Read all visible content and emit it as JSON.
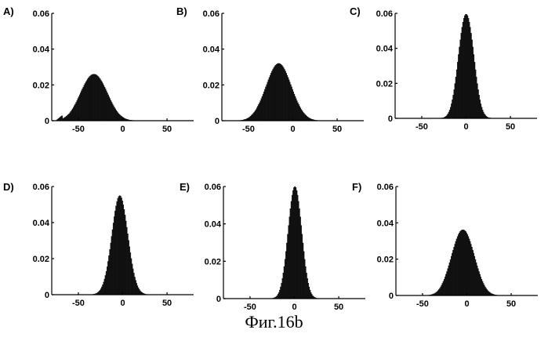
{
  "caption": "Фиг.16b",
  "colors": {
    "bars": "#111111",
    "axes": "#000000",
    "background": "#ffffff"
  },
  "chart_data": [
    {
      "panel": "A)",
      "type": "bar",
      "xlim": [
        -80,
        80
      ],
      "ylim": [
        0,
        0.06
      ],
      "xticks": [
        -50,
        0,
        50
      ],
      "xtick_labels": [
        "-50",
        "0",
        "50"
      ],
      "yticks": [
        0,
        0.02,
        0.04,
        0.06
      ],
      "ytick_labels": [
        "0",
        "0.02",
        "0.04",
        "0.06"
      ],
      "bins": {
        "start": -80,
        "width": 1
      },
      "values": [
        0.0,
        0.0,
        0.0,
        0.0,
        0.0,
        0.0004,
        0.0008,
        0.0012,
        0.0016,
        0.002,
        0.0024,
        0.0028,
        0.0012,
        0.0015,
        0.0018,
        0.0021,
        0.0025,
        0.0029,
        0.0034,
        0.0039,
        0.0045,
        0.0052,
        0.0059,
        0.0067,
        0.0075,
        0.0084,
        0.0093,
        0.0103,
        0.0113,
        0.0124,
        0.0134,
        0.0145,
        0.0156,
        0.0167,
        0.0178,
        0.0188,
        0.0198,
        0.0208,
        0.0217,
        0.0225,
        0.0233,
        0.024,
        0.0246,
        0.0251,
        0.0255,
        0.0258,
        0.026,
        0.026,
        0.026,
        0.0258,
        0.0255,
        0.0251,
        0.0246,
        0.024,
        0.0233,
        0.0225,
        0.0217,
        0.0208,
        0.0198,
        0.0188,
        0.0178,
        0.0167,
        0.0156,
        0.0145,
        0.0134,
        0.0124,
        0.0113,
        0.0103,
        0.0093,
        0.0084,
        0.0075,
        0.0067,
        0.0059,
        0.0052,
        0.0045,
        0.0039,
        0.0034,
        0.0029,
        0.0025,
        0.0021,
        0.0018,
        0.0015,
        0.0012,
        0.001,
        0.0008,
        0.0007,
        0.0005,
        0.0004,
        0.0003,
        0.0003,
        0.0002,
        0.0002,
        0.0001,
        0.0001,
        0.0001,
        0.0001,
        0.0,
        0.0,
        0.0,
        0.0,
        0.0,
        0.0,
        0.0,
        0.0,
        0.0,
        0.0,
        0.0,
        0.0,
        0.0,
        0.0,
        0.0,
        0.0,
        0.0,
        0.0,
        0.0,
        0.0,
        0.0,
        0.0,
        0.0,
        0.0,
        0.0,
        0.0,
        0.0,
        0.0,
        0.0,
        0.0,
        0.0,
        0.0,
        0.0,
        0.0,
        0.0,
        0.0,
        0.0,
        0.0,
        0.0,
        0.0,
        0.0,
        0.0,
        0.0,
        0.0,
        0.0,
        0.0,
        0.0,
        0.0,
        0.0,
        0.0,
        0.0,
        0.0,
        0.0,
        0.0,
        0.0,
        0.0,
        0.0,
        0.0,
        0.0,
        0.0,
        0.0,
        0.0,
        0.0,
        0.0,
        0.0,
        0.0,
        0.0,
        0.0,
        0.0,
        0.0,
        0.0,
        0.0
      ]
    },
    {
      "panel": "B)",
      "type": "bar",
      "xlim": [
        -80,
        80
      ],
      "ylim": [
        0,
        0.06
      ],
      "xticks": [
        -50,
        0,
        50
      ],
      "xtick_labels": [
        "-50",
        "0",
        "50"
      ],
      "yticks": [
        0,
        0.02,
        0.04,
        0.06
      ],
      "ytick_labels": [
        "0",
        "0.02",
        "0.04",
        "0.06"
      ],
      "bins": {
        "start": -80,
        "width": 1
      },
      "values": [
        0.0,
        0.0,
        0.0,
        0.0,
        0.0,
        0.0,
        0.0,
        0.0,
        0.0,
        0.0,
        0.0,
        0.0,
        0.0,
        0.0,
        0.0,
        0.0,
        0.0,
        0.0001,
        0.0001,
        0.0001,
        0.0002,
        0.0002,
        0.0003,
        0.0004,
        0.0005,
        0.0007,
        0.0008,
        0.001,
        0.0013,
        0.0015,
        0.0018,
        0.0022,
        0.0026,
        0.0031,
        0.0036,
        0.0042,
        0.0048,
        0.0055,
        0.0063,
        0.0072,
        0.0081,
        0.0091,
        0.0101,
        0.0112,
        0.0124,
        0.0136,
        0.0149,
        0.0162,
        0.0175,
        0.0189,
        0.0202,
        0.0216,
        0.0229,
        0.0242,
        0.0254,
        0.0266,
        0.0277,
        0.0287,
        0.0296,
        0.0304,
        0.031,
        0.0315,
        0.0318,
        0.032,
        0.032,
        0.0318,
        0.0315,
        0.031,
        0.0304,
        0.0296,
        0.0287,
        0.0277,
        0.0266,
        0.0254,
        0.0242,
        0.0229,
        0.0216,
        0.0202,
        0.0189,
        0.0175,
        0.0162,
        0.0149,
        0.0136,
        0.0124,
        0.0112,
        0.0101,
        0.0091,
        0.0081,
        0.0072,
        0.0063,
        0.0055,
        0.0048,
        0.0042,
        0.0036,
        0.0031,
        0.0026,
        0.0022,
        0.0018,
        0.0015,
        0.0013,
        0.001,
        0.0008,
        0.0007,
        0.0005,
        0.0004,
        0.0003,
        0.0002,
        0.0002,
        0.0001,
        0.0001,
        0.0001,
        0.0,
        0.0,
        0.0,
        0.0,
        0.0,
        0.0,
        0.0,
        0.0,
        0.0,
        0.0,
        0.0,
        0.0,
        0.0,
        0.0,
        0.0,
        0.0,
        0.0,
        0.0,
        0.0,
        0.0,
        0.0,
        0.0,
        0.0,
        0.0,
        0.0,
        0.0,
        0.0,
        0.0,
        0.0,
        0.0,
        0.0,
        0.0,
        0.0,
        0.0,
        0.0,
        0.0,
        0.0,
        0.0,
        0.0,
        0.0,
        0.0,
        0.0,
        0.0,
        0.0,
        0.0,
        0.0,
        0.0,
        0.0,
        0.0,
        0.0,
        0.0,
        0.0,
        0.0,
        0.0,
        0.0,
        0.0
      ]
    },
    {
      "panel": "C)",
      "type": "bar",
      "xlim": [
        -80,
        80
      ],
      "ylim": [
        0,
        0.06
      ],
      "xticks": [
        -50,
        0,
        50
      ],
      "xtick_labels": [
        "-50",
        "0",
        "50"
      ],
      "yticks": [
        0,
        0.02,
        0.04,
        0.06
      ],
      "ytick_labels": [
        "0",
        "0.02",
        "0.04",
        "0.06"
      ],
      "bins": {
        "start": -80,
        "width": 1
      },
      "values": [
        0.0,
        0.0,
        0.0,
        0.0,
        0.0,
        0.0,
        0.0,
        0.0,
        0.0,
        0.0,
        0.0,
        0.0,
        0.0,
        0.0,
        0.0,
        0.0,
        0.0,
        0.0,
        0.0,
        0.0,
        0.0,
        0.0,
        0.0,
        0.0,
        0.0,
        0.0,
        0.0,
        0.0,
        0.0,
        0.0,
        0.0,
        0.0,
        0.0,
        0.0,
        0.0,
        0.0,
        0.0,
        0.0,
        0.0,
        0.0,
        0.0,
        0.0,
        0.0,
        0.0,
        0.0,
        0.0,
        0.0,
        0.0,
        0.0,
        0.0,
        0.0001,
        0.0001,
        0.0002,
        0.0003,
        0.0004,
        0.0006,
        0.0009,
        0.0013,
        0.0019,
        0.0026,
        0.0036,
        0.0048,
        0.0064,
        0.0083,
        0.0106,
        0.0133,
        0.0164,
        0.0199,
        0.0237,
        0.0278,
        0.0321,
        0.0365,
        0.0408,
        0.0449,
        0.0487,
        0.0521,
        0.055,
        0.0572,
        0.0587,
        0.0594,
        0.0594,
        0.0587,
        0.0572,
        0.055,
        0.0521,
        0.0487,
        0.0449,
        0.0408,
        0.0365,
        0.0321,
        0.0278,
        0.0237,
        0.0199,
        0.0164,
        0.0133,
        0.0106,
        0.0083,
        0.0064,
        0.0048,
        0.0036,
        0.0026,
        0.0019,
        0.0013,
        0.0009,
        0.0006,
        0.0004,
        0.0003,
        0.0002,
        0.0001,
        0.0001,
        0.0,
        0.0,
        0.0,
        0.0,
        0.0,
        0.0,
        0.0,
        0.0,
        0.0,
        0.0,
        0.0,
        0.0,
        0.0,
        0.0,
        0.0,
        0.0,
        0.0,
        0.0,
        0.0,
        0.0,
        0.0,
        0.0,
        0.0,
        0.0,
        0.0,
        0.0,
        0.0,
        0.0,
        0.0,
        0.0,
        0.0,
        0.0,
        0.0,
        0.0,
        0.0,
        0.0,
        0.0,
        0.0,
        0.0,
        0.0,
        0.0,
        0.0,
        0.0,
        0.0,
        0.0,
        0.0,
        0.0,
        0.0,
        0.0,
        0.0,
        0.0,
        0.0,
        0.0,
        0.0,
        0.0,
        0.0
      ]
    },
    {
      "panel": "D)",
      "type": "bar",
      "xlim": [
        -80,
        80
      ],
      "ylim": [
        0,
        0.06
      ],
      "xticks": [
        -50,
        0,
        50
      ],
      "xtick_labels": [
        "-50",
        "0",
        "50"
      ],
      "yticks": [
        0,
        0.02,
        0.04,
        0.06
      ],
      "ytick_labels": [
        "0",
        "0.02",
        "0.04",
        "0.06"
      ],
      "bins": {
        "start": -80,
        "width": 1
      },
      "values": [
        0.0,
        0.0,
        0.0,
        0.0,
        0.0,
        0.0,
        0.0,
        0.0,
        0.0,
        0.0,
        0.0,
        0.0,
        0.0,
        0.0,
        0.0,
        0.0,
        0.0,
        0.0,
        0.0,
        0.0,
        0.0,
        0.0,
        0.0,
        0.0,
        0.0,
        0.0,
        0.0,
        0.0,
        0.0,
        0.0,
        0.0,
        0.0,
        0.0,
        0.0,
        0.0,
        0.0,
        0.0,
        0.0,
        0.0,
        0.0,
        0.0,
        0.0,
        0.0,
        0.0001,
        0.0001,
        0.0001,
        0.0002,
        0.0003,
        0.0004,
        0.0006,
        0.0008,
        0.0011,
        0.0015,
        0.002,
        0.0026,
        0.0034,
        0.0044,
        0.0056,
        0.007,
        0.0087,
        0.0107,
        0.013,
        0.0156,
        0.0185,
        0.0217,
        0.0251,
        0.0287,
        0.0324,
        0.0361,
        0.0398,
        0.0433,
        0.0465,
        0.0493,
        0.0517,
        0.0534,
        0.0545,
        0.055,
        0.0547,
        0.0537,
        0.0521,
        0.0499,
        0.0473,
        0.0442,
        0.0409,
        0.0374,
        0.0338,
        0.0302,
        0.0267,
        0.0233,
        0.0201,
        0.0171,
        0.0144,
        0.012,
        0.0098,
        0.008,
        0.0064,
        0.005,
        0.0039,
        0.003,
        0.0023,
        0.0017,
        0.0013,
        0.0009,
        0.0007,
        0.0005,
        0.0003,
        0.0002,
        0.0002,
        0.0001,
        0.0001,
        0.0,
        0.0,
        0.0,
        0.0,
        0.0,
        0.0,
        0.0,
        0.0,
        0.0,
        0.0,
        0.0,
        0.0,
        0.0,
        0.0,
        0.0,
        0.0,
        0.0,
        0.0,
        0.0,
        0.0,
        0.0,
        0.0,
        0.0,
        0.0,
        0.0,
        0.0,
        0.0,
        0.0,
        0.0,
        0.0,
        0.0,
        0.0,
        0.0,
        0.0,
        0.0,
        0.0,
        0.0,
        0.0,
        0.0,
        0.0,
        0.0,
        0.0,
        0.0,
        0.0,
        0.0,
        0.0,
        0.0,
        0.0,
        0.0,
        0.0,
        0.0,
        0.0,
        0.0,
        0.0,
        0.0,
        0.0,
        0.0
      ]
    },
    {
      "panel": "E)",
      "type": "bar",
      "xlim": [
        -80,
        80
      ],
      "ylim": [
        0,
        0.06
      ],
      "xticks": [
        -50,
        0,
        50
      ],
      "xtick_labels": [
        "-50",
        "0",
        "50"
      ],
      "yticks": [
        0,
        0.02,
        0.04,
        0.06
      ],
      "ytick_labels": [
        "0",
        "0.02",
        "0.04",
        "0.06"
      ],
      "bins": {
        "start": -80,
        "width": 1
      },
      "values": [
        0.0,
        0.0,
        0.0,
        0.0,
        0.0,
        0.0,
        0.0,
        0.0,
        0.0,
        0.0,
        0.0,
        0.0,
        0.0,
        0.0,
        0.0,
        0.0,
        0.0,
        0.0,
        0.0,
        0.0,
        0.0,
        0.0,
        0.0,
        0.0,
        0.0,
        0.0,
        0.0,
        0.0,
        0.0,
        0.0,
        0.0,
        0.0,
        0.0,
        0.0,
        0.0,
        0.0,
        0.0,
        0.0,
        0.0,
        0.0,
        0.0,
        0.0,
        0.0,
        0.0,
        0.0,
        0.0,
        0.0,
        0.0,
        0.0,
        0.0,
        0.0,
        0.0,
        0.0,
        0.0,
        0.0001,
        0.0002,
        0.0003,
        0.0005,
        0.0007,
        0.0011,
        0.0016,
        0.0024,
        0.0033,
        0.0046,
        0.0063,
        0.0083,
        0.0108,
        0.0138,
        0.0172,
        0.0211,
        0.0253,
        0.0298,
        0.0345,
        0.0392,
        0.0438,
        0.0482,
        0.0521,
        0.0554,
        0.0579,
        0.0595,
        0.06,
        0.0595,
        0.0579,
        0.0554,
        0.0521,
        0.0482,
        0.0438,
        0.0392,
        0.0345,
        0.0298,
        0.0253,
        0.0211,
        0.0172,
        0.0138,
        0.0108,
        0.0083,
        0.0063,
        0.0046,
        0.0033,
        0.0024,
        0.0016,
        0.0011,
        0.0007,
        0.0005,
        0.0003,
        0.0002,
        0.0001,
        0.0,
        0.0,
        0.0,
        0.0,
        0.0,
        0.0,
        0.0,
        0.0,
        0.0,
        0.0,
        0.0,
        0.0,
        0.0,
        0.0,
        0.0,
        0.0,
        0.0,
        0.0,
        0.0,
        0.0,
        0.0,
        0.0,
        0.0,
        0.0,
        0.0,
        0.0,
        0.0,
        0.0,
        0.0,
        0.0,
        0.0,
        0.0,
        0.0,
        0.0,
        0.0,
        0.0,
        0.0,
        0.0,
        0.0,
        0.0,
        0.0,
        0.0,
        0.0,
        0.0,
        0.0,
        0.0,
        0.0,
        0.0,
        0.0,
        0.0,
        0.0,
        0.0,
        0.0,
        0.0,
        0.0,
        0.0,
        0.0,
        0.0,
        0.0
      ]
    },
    {
      "panel": "F)",
      "type": "bar",
      "xlim": [
        -80,
        80
      ],
      "ylim": [
        0,
        0.06
      ],
      "xticks": [
        -50,
        0,
        50
      ],
      "xtick_labels": [
        "-50",
        "0",
        "50"
      ],
      "yticks": [
        0,
        0.02,
        0.04,
        0.06
      ],
      "ytick_labels": [
        "0",
        "0.02",
        "0.04",
        "0.06"
      ],
      "bins": {
        "start": -80,
        "width": 1
      },
      "values": [
        0.0,
        0.0,
        0.0,
        0.0,
        0.0,
        0.0,
        0.0,
        0.0,
        0.0,
        0.0,
        0.0,
        0.0,
        0.0,
        0.0,
        0.0,
        0.0,
        0.0,
        0.0,
        0.0,
        0.0,
        0.0,
        0.0,
        0.0,
        0.0,
        0.0,
        0.0,
        0.0,
        0.0,
        0.0,
        0.0,
        0.0,
        0.0,
        0.0,
        0.0001,
        0.0001,
        0.0001,
        0.0002,
        0.0002,
        0.0003,
        0.0004,
        0.0005,
        0.0007,
        0.0009,
        0.0011,
        0.0014,
        0.0018,
        0.0022,
        0.0027,
        0.0033,
        0.004,
        0.0048,
        0.0057,
        0.0067,
        0.0078,
        0.009,
        0.0103,
        0.0117,
        0.0132,
        0.0148,
        0.0164,
        0.0181,
        0.0198,
        0.0216,
        0.0233,
        0.025,
        0.0267,
        0.0283,
        0.0298,
        0.0312,
        0.0325,
        0.0336,
        0.0345,
        0.0353,
        0.0358,
        0.0361,
        0.0362,
        0.0361,
        0.0358,
        0.0353,
        0.0345,
        0.0336,
        0.0325,
        0.0312,
        0.0298,
        0.0283,
        0.0267,
        0.025,
        0.0233,
        0.0216,
        0.0198,
        0.0181,
        0.0164,
        0.0148,
        0.0132,
        0.0117,
        0.0103,
        0.009,
        0.0078,
        0.0067,
        0.0057,
        0.0048,
        0.004,
        0.0033,
        0.0027,
        0.0022,
        0.0018,
        0.0014,
        0.0011,
        0.0009,
        0.0007,
        0.0005,
        0.0004,
        0.0003,
        0.0002,
        0.0002,
        0.0001,
        0.0001,
        0.0001,
        0.0,
        0.0,
        0.0,
        0.0,
        0.0,
        0.0,
        0.0,
        0.0,
        0.0,
        0.0,
        0.0,
        0.0,
        0.0,
        0.0,
        0.0,
        0.0,
        0.0,
        0.0,
        0.0,
        0.0,
        0.0,
        0.0,
        0.0,
        0.0,
        0.0,
        0.0,
        0.0,
        0.0,
        0.0,
        0.0,
        0.0,
        0.0,
        0.0,
        0.0,
        0.0,
        0.0,
        0.0,
        0.0,
        0.0,
        0.0,
        0.0,
        0.0,
        0.0,
        0.0,
        0.0,
        0.0,
        0.0,
        0.0,
        0.0,
        0.0,
        0.0,
        0.0
      ]
    }
  ]
}
